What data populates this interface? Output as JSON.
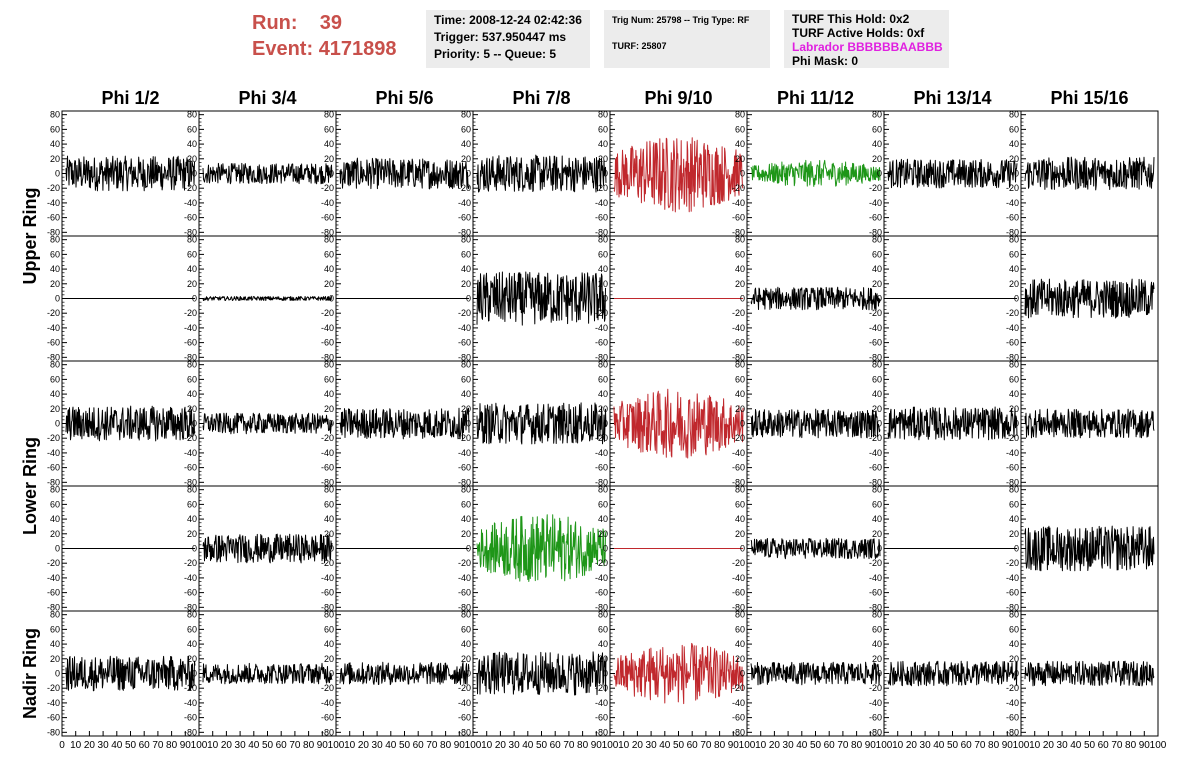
{
  "header": {
    "run_label": "Run:",
    "run_value": "39",
    "event_label": "Event:",
    "event_value": "4171898",
    "time": "Time: 2008-12-24 02:42:36",
    "trigger": "Trigger: 537.950447 ms",
    "priority": "Priority: 5 -- Queue: 5",
    "trig_num": "Trig Num: 25798 -- Trig Type: RF",
    "turf": "TURF: 25807",
    "turf_hold": "TURF This Hold: 0x2",
    "turf_active": "TURF Active Holds: 0xf",
    "labrador": "Labrador BBBBBBAABBB",
    "phi_mask": "Phi Mask: 0"
  },
  "colors": {
    "header_red": "#c8504b",
    "labrador_magenta": "#e020e0",
    "trace_black": "#000000",
    "trace_red": "#c0282d",
    "trace_green": "#1e9618",
    "box_gray": "#ececec"
  },
  "chart_data": {
    "type": "line",
    "columns": [
      "Phi 1/2",
      "Phi 3/4",
      "Phi 5/6",
      "Phi 7/8",
      "Phi 9/10",
      "Phi 11/12",
      "Phi 13/14",
      "Phi 15/16"
    ],
    "ring_labels": [
      "Upper Ring",
      "Lower Ring",
      "Nadir Ring"
    ],
    "ylim": [
      -85,
      85
    ],
    "y_ticks": [
      -80,
      -60,
      -40,
      -20,
      0,
      20,
      40,
      60,
      80
    ],
    "xlim": [
      0,
      100
    ],
    "x_ticks": [
      0,
      10,
      20,
      30,
      40,
      50,
      60,
      70,
      80,
      90,
      100
    ],
    "samples_per_trace": 260,
    "rows": [
      {
        "ring": "Upper Ring",
        "traces": [
          {
            "amp": 17,
            "color": "black"
          },
          {
            "amp": 10,
            "color": "black"
          },
          {
            "amp": 15,
            "color": "black"
          },
          {
            "amp": 18,
            "color": "black"
          },
          {
            "amp": 38,
            "color": "red"
          },
          {
            "amp": 13,
            "color": "green"
          },
          {
            "amp": 14,
            "color": "black"
          },
          {
            "amp": 16,
            "color": "black"
          }
        ]
      },
      {
        "ring": "Upper Ring",
        "traces": [
          {
            "amp": 0,
            "color": "black"
          },
          {
            "amp": 2,
            "color": "black"
          },
          {
            "amp": 0,
            "color": "black"
          },
          {
            "amp": 26,
            "color": "black"
          },
          {
            "amp": 0,
            "color": "red"
          },
          {
            "amp": 11,
            "color": "black"
          },
          {
            "amp": 0,
            "color": "black"
          },
          {
            "amp": 19,
            "color": "black"
          }
        ]
      },
      {
        "ring": "Lower Ring",
        "traces": [
          {
            "amp": 17,
            "color": "black"
          },
          {
            "amp": 10,
            "color": "black"
          },
          {
            "amp": 15,
            "color": "black"
          },
          {
            "amp": 20,
            "color": "black"
          },
          {
            "amp": 34,
            "color": "red"
          },
          {
            "amp": 14,
            "color": "black"
          },
          {
            "amp": 16,
            "color": "black"
          },
          {
            "amp": 14,
            "color": "black"
          }
        ]
      },
      {
        "ring": "Lower Ring",
        "traces": [
          {
            "amp": 0,
            "color": "black"
          },
          {
            "amp": 14,
            "color": "black"
          },
          {
            "amp": 0,
            "color": "black"
          },
          {
            "amp": 34,
            "color": "green"
          },
          {
            "amp": 0,
            "color": "red"
          },
          {
            "amp": 10,
            "color": "black"
          },
          {
            "amp": 0,
            "color": "black"
          },
          {
            "amp": 22,
            "color": "black"
          }
        ]
      },
      {
        "ring": "Nadir Ring",
        "traces": [
          {
            "amp": 17,
            "color": "black"
          },
          {
            "amp": 10,
            "color": "black"
          },
          {
            "amp": 11,
            "color": "black"
          },
          {
            "amp": 21,
            "color": "black"
          },
          {
            "amp": 30,
            "color": "red"
          },
          {
            "amp": 11,
            "color": "black"
          },
          {
            "amp": 12,
            "color": "black"
          },
          {
            "amp": 12,
            "color": "black"
          }
        ]
      }
    ]
  }
}
